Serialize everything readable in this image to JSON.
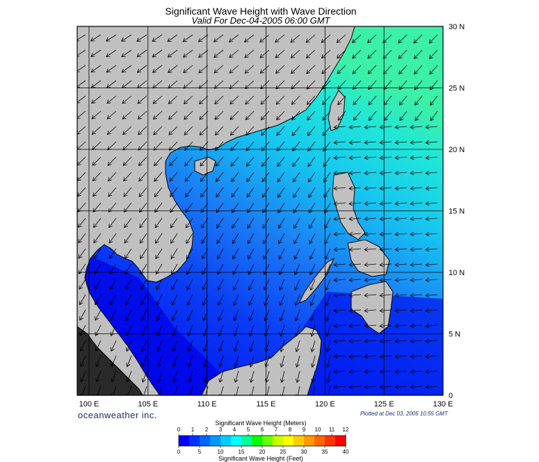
{
  "title": "Significant Wave Height with Wave Direction",
  "subtitle": "Valid For Dec-04-2005 06:00 GMT",
  "map": {
    "lon_ticks": [
      100,
      105,
      110,
      115,
      120,
      125,
      130
    ],
    "lon_labels": [
      "100 E",
      "105 E",
      "110 E",
      "115 E",
      "120 E",
      "125 E",
      "130 E"
    ],
    "lat_ticks": [
      0,
      5,
      10,
      15,
      20,
      25,
      30
    ],
    "lat_labels": [
      "0",
      "5 N",
      "10 N",
      "15 N",
      "20 N",
      "25 N",
      "30 N"
    ],
    "lon_range": [
      99,
      130
    ],
    "lat_range": [
      0,
      30
    ],
    "land_color": "#c0c0c0",
    "grid_color": "#000000"
  },
  "legend": {
    "meters_title": "Significant Wave Height (Meters)",
    "feet_title": "Significant Wave Height (Feet)",
    "meters_labels": [
      "0",
      "1",
      "2",
      "3",
      "4",
      "5",
      "6",
      "7",
      "8",
      "9",
      "10",
      "11",
      "12"
    ],
    "feet_labels": [
      "0",
      "5",
      "10",
      "15",
      "20",
      "25",
      "30",
      "35",
      "40"
    ],
    "colors": [
      "#0000ff",
      "#0033ff",
      "#0066ff",
      "#0099ff",
      "#00ccff",
      "#00ffff",
      "#00ff99",
      "#00ff00",
      "#66ff00",
      "#ccff00",
      "#ffff00",
      "#ffcc00",
      "#ff9900",
      "#ff6600",
      "#ff3300",
      "#ff0000"
    ]
  },
  "branding": "oceanweather inc.",
  "plotted": "Plotted at Dec 03, 2005 10:55 GMT"
}
